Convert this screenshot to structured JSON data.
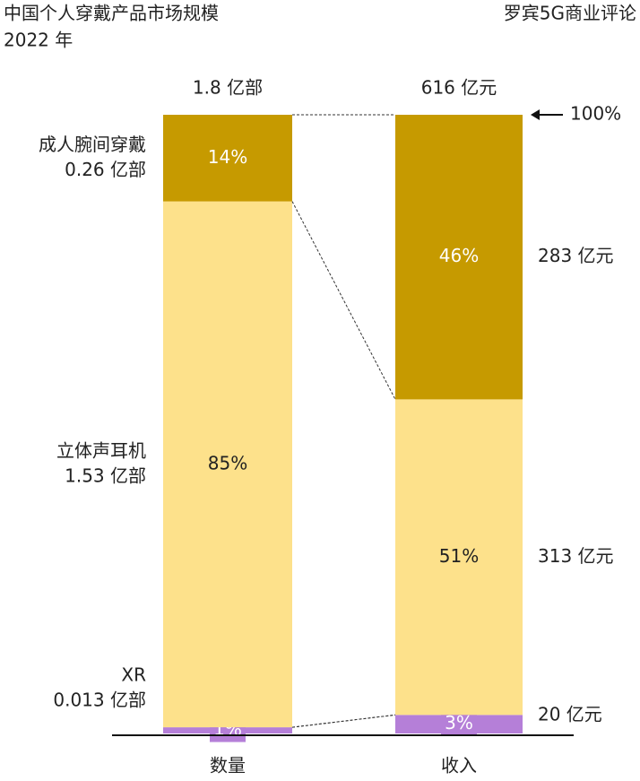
{
  "chart_data": {
    "type": "stacked_bar",
    "title": "中国个人穿戴产品市场规模",
    "subtitle": "2022 年",
    "source": "罗宾5G商业评论",
    "categories": [
      "数量",
      "收入"
    ],
    "totals": [
      "1.8 亿部",
      "616 亿元"
    ],
    "ylim": [
      0,
      100
    ],
    "yticks": [
      {
        "value": 100,
        "label": "100%"
      }
    ],
    "series": [
      {
        "name": "XR",
        "color": "#b57fd8",
        "values": [
          1,
          3
        ],
        "value_labels": [
          "1%",
          "3%"
        ],
        "quantity_label": "0.013 亿部",
        "revenue_label": "20 亿元"
      },
      {
        "name": "立体声耳机",
        "color": "#fde18b",
        "values": [
          85,
          51
        ],
        "value_labels": [
          "85%",
          "51%"
        ],
        "quantity_label": "1.53 亿部",
        "revenue_label": "313 亿元"
      },
      {
        "name": "成人腕间穿戴",
        "color": "#c69a00",
        "values": [
          14,
          46
        ],
        "value_labels": [
          "14%",
          "46%"
        ],
        "quantity_label": "0.26 亿部",
        "revenue_label": "283 亿元"
      }
    ]
  }
}
